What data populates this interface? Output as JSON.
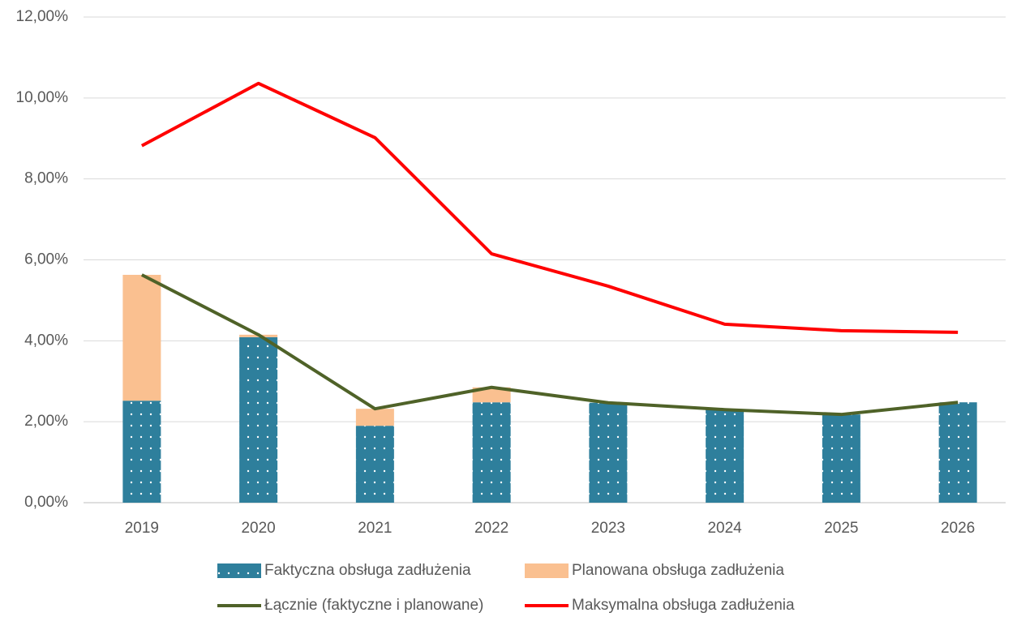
{
  "chart_data": {
    "type": "combo",
    "categories": [
      "2019",
      "2020",
      "2021",
      "2022",
      "2023",
      "2024",
      "2025",
      "2026"
    ],
    "series": [
      {
        "name": "Faktyczna obsługa zadłużenia",
        "type": "bar",
        "color": "#2e7f9c",
        "values": [
          2.52,
          4.09,
          1.9,
          2.48,
          2.47,
          2.3,
          2.18,
          2.48
        ]
      },
      {
        "name": "Planowana obsługa zadłużenia",
        "type": "bar",
        "color": "#fac090",
        "values": [
          3.11,
          0.06,
          0.42,
          0.37,
          0,
          0,
          0,
          0
        ]
      },
      {
        "name": "Łącznie (faktyczne i planowane)",
        "type": "line",
        "color": "#4f6228",
        "values": [
          5.63,
          4.15,
          2.32,
          2.85,
          2.47,
          2.3,
          2.18,
          2.48
        ]
      },
      {
        "name": "Maksymalna obsługa zadłużenia",
        "type": "line",
        "color": "#ff0000",
        "values": [
          8.82,
          10.36,
          9.02,
          6.15,
          5.35,
          4.41,
          4.25,
          4.21
        ]
      }
    ],
    "ylim": [
      0,
      12
    ],
    "yticks": [
      {
        "value": 0,
        "label": "0,00%"
      },
      {
        "value": 2,
        "label": "2,00%"
      },
      {
        "value": 4,
        "label": "4,00%"
      },
      {
        "value": 6,
        "label": "6,00%"
      },
      {
        "value": 8,
        "label": "8,00%"
      },
      {
        "value": 10,
        "label": "10,00%"
      },
      {
        "value": 12,
        "label": "12,00%"
      }
    ],
    "grid": true
  }
}
